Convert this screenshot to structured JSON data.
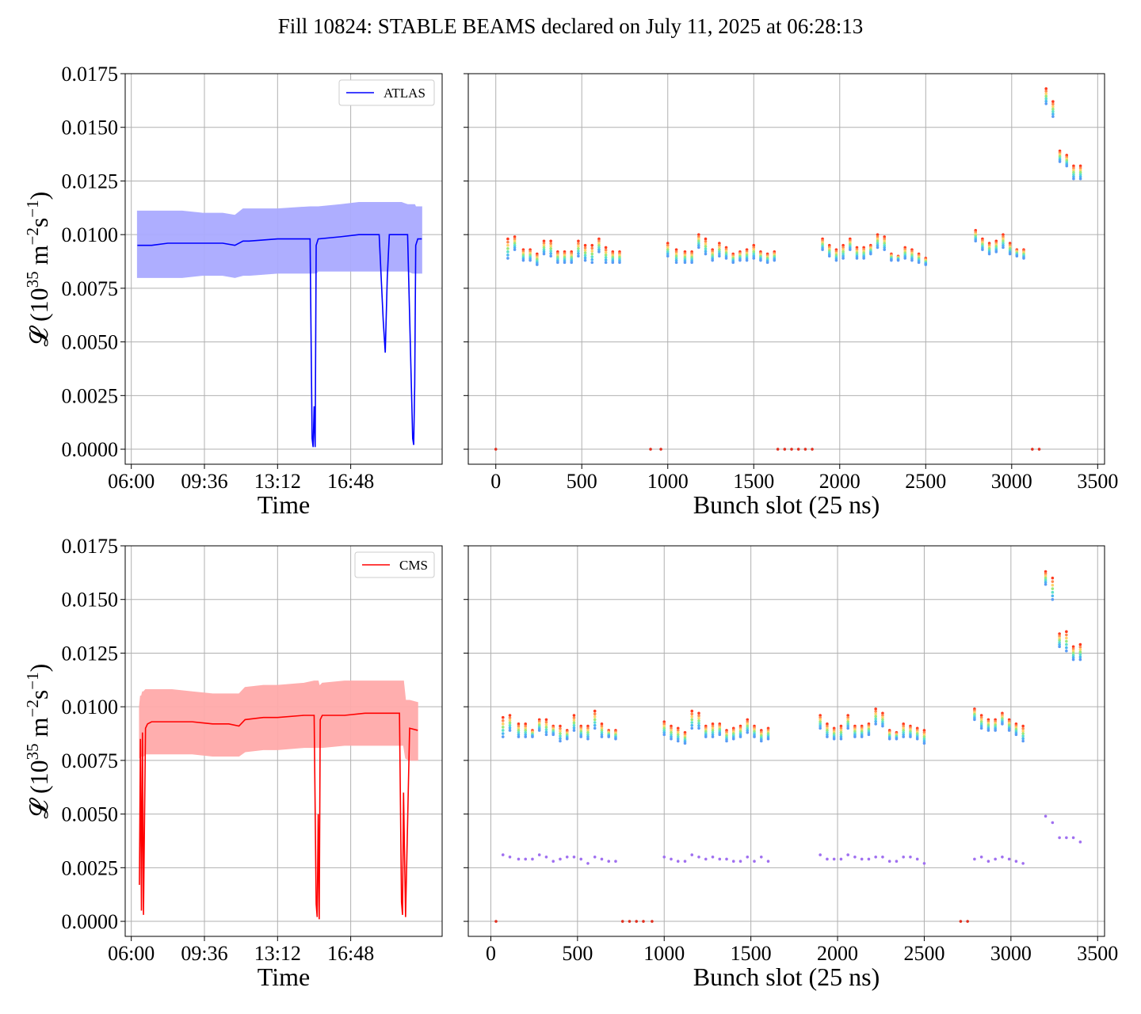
{
  "figure": {
    "title": "Fill 10824: STABLE BEAMS declared on July 11, 2025 at 06:28:13"
  },
  "colors": {
    "atlas": "#0000ff",
    "atlas_band": "#aaaaff",
    "cms": "#ff0000",
    "cms_band": "#ffaaaa",
    "grid": "#b0b0b0",
    "purple": "#a070f0"
  },
  "chart_data": [
    {
      "id": "atlas-time",
      "type": "line",
      "xlabel": "Time",
      "ylabel_main": "𝓛 (10",
      "ylabel_sup1": "35",
      "ylabel_mid": " m",
      "ylabel_sup2": "−2",
      "ylabel_s": "s",
      "ylabel_sup3": "−1",
      "ylabel_end": ")",
      "xlim_hours": [
        5.7,
        21.3
      ],
      "ylim": [
        -0.0007,
        0.0175
      ],
      "xticks": [
        {
          "v": 6.0,
          "label": "06:00"
        },
        {
          "v": 9.6,
          "label": "09:36"
        },
        {
          "v": 13.2,
          "label": "13:12"
        },
        {
          "v": 16.8,
          "label": "16:48"
        }
      ],
      "yticks": [
        "0.0000",
        "0.0025",
        "0.0050",
        "0.0075",
        "0.0100",
        "0.0125",
        "0.0150",
        "0.0175"
      ],
      "legend": {
        "label": "ATLAS",
        "position": "upper right"
      },
      "series": [
        {
          "name": "ATLAS",
          "x": [
            6.3,
            7.0,
            7.8,
            8.5,
            9.5,
            10.5,
            11.1,
            11.5,
            11.8,
            13.2,
            14.8,
            14.9,
            14.95,
            15.0,
            15.05,
            15.1,
            15.2,
            16.3,
            17.2,
            18.2,
            18.4,
            18.5,
            18.6,
            18.7,
            19.3,
            19.6,
            19.85,
            19.9,
            19.95,
            20.0,
            20.1,
            20.3
          ],
          "y": [
            0.0095,
            0.0095,
            0.0096,
            0.0096,
            0.0096,
            0.0096,
            0.0095,
            0.0097,
            0.0097,
            0.0098,
            0.0098,
            0.0005,
            0.0001,
            0.002,
            0.0001,
            0.0095,
            0.0098,
            0.0099,
            0.01,
            0.01,
            0.006,
            0.0045,
            0.008,
            0.01,
            0.01,
            0.01,
            0.0005,
            0.0002,
            0.003,
            0.0095,
            0.0098,
            0.0098
          ],
          "band_upper": [
            0.0111,
            0.0111,
            0.0111,
            0.0111,
            0.011,
            0.011,
            0.0109,
            0.0112,
            0.0112,
            0.0112,
            0.0113,
            0.0113,
            0.0113,
            0.0113,
            0.0113,
            0.0113,
            0.0113,
            0.0114,
            0.0115,
            0.0115,
            0.0115,
            0.0115,
            0.0115,
            0.0115,
            0.0115,
            0.0114,
            0.0114,
            0.0114,
            0.0114,
            0.0113,
            0.0113,
            0.0113
          ],
          "band_lower": [
            0.008,
            0.008,
            0.008,
            0.008,
            0.0081,
            0.0081,
            0.008,
            0.0081,
            0.0081,
            0.0082,
            0.0082,
            0.0082,
            0.0082,
            0.0082,
            0.0082,
            0.0082,
            0.0083,
            0.0083,
            0.0083,
            0.0083,
            0.0083,
            0.0083,
            0.0083,
            0.0083,
            0.0083,
            0.0083,
            0.0082,
            0.0082,
            0.0082,
            0.0082,
            0.0082,
            0.0082
          ]
        }
      ]
    },
    {
      "id": "atlas-bunch",
      "type": "scatter",
      "xlabel": "Bunch slot (25 ns)",
      "xlim": [
        -160,
        3540
      ],
      "ylim": [
        -0.0007,
        0.0175
      ],
      "xticks": [
        "0",
        "500",
        "1000",
        "1500",
        "2000",
        "2500",
        "3000",
        "3500"
      ],
      "groups": [
        {
          "x": [
            70,
            110,
            160,
            200,
            240,
            280,
            320,
            360,
            400,
            440,
            480,
            520,
            560,
            600,
            640,
            680,
            720
          ],
          "top": [
            0.0098,
            0.0099,
            0.0093,
            0.0093,
            0.0091,
            0.0097,
            0.0097,
            0.0092,
            0.0092,
            0.0092,
            0.0097,
            0.0095,
            0.0095,
            0.0098,
            0.0094,
            0.0092,
            0.0092
          ],
          "bottom": [
            0.0089,
            0.0093,
            0.0088,
            0.0088,
            0.0086,
            0.0091,
            0.009,
            0.0087,
            0.0087,
            0.0087,
            0.009,
            0.0088,
            0.0087,
            0.0092,
            0.0087,
            0.0087,
            0.0087
          ]
        },
        {
          "x": [
            1000,
            1050,
            1100,
            1140,
            1180,
            1220,
            1260,
            1300,
            1340,
            1380,
            1420,
            1460,
            1500,
            1540,
            1580,
            1620
          ],
          "top": [
            0.0096,
            0.0093,
            0.0092,
            0.0092,
            0.01,
            0.0098,
            0.0093,
            0.0096,
            0.0094,
            0.0091,
            0.0092,
            0.0093,
            0.0095,
            0.0092,
            0.0091,
            0.0092
          ],
          "bottom": [
            0.009,
            0.0087,
            0.0087,
            0.0087,
            0.0094,
            0.0091,
            0.0088,
            0.009,
            0.0089,
            0.0087,
            0.0088,
            0.0088,
            0.0089,
            0.0088,
            0.0087,
            0.0088
          ]
        },
        {
          "x": [
            1900,
            1940,
            1980,
            2020,
            2060,
            2100,
            2140,
            2180,
            2220,
            2260,
            2300,
            2340,
            2380,
            2420,
            2460,
            2500
          ],
          "top": [
            0.0098,
            0.0095,
            0.0093,
            0.0095,
            0.0098,
            0.0094,
            0.0094,
            0.0095,
            0.01,
            0.0099,
            0.0091,
            0.009,
            0.0094,
            0.0093,
            0.0091,
            0.0089
          ],
          "bottom": [
            0.0093,
            0.009,
            0.0088,
            0.0089,
            0.0093,
            0.0089,
            0.0089,
            0.0091,
            0.0094,
            0.0093,
            0.0088,
            0.0088,
            0.0089,
            0.0088,
            0.0087,
            0.0086
          ]
        },
        {
          "x": [
            2790,
            2830,
            2870,
            2910,
            2950,
            2990,
            3030,
            3070
          ],
          "top": [
            0.0102,
            0.0098,
            0.0096,
            0.0097,
            0.01,
            0.0096,
            0.0093,
            0.0093
          ],
          "bottom": [
            0.0097,
            0.0093,
            0.0091,
            0.0092,
            0.0094,
            0.0091,
            0.009,
            0.0089
          ]
        },
        {
          "x": [
            3200,
            3240,
            3280,
            3320,
            3360,
            3400
          ],
          "top": [
            0.0168,
            0.0162,
            0.0139,
            0.0137,
            0.0132,
            0.0132
          ],
          "bottom": [
            0.0161,
            0.0155,
            0.0134,
            0.0132,
            0.0126,
            0.0126
          ]
        }
      ],
      "zero_points": [
        0,
        900,
        960,
        1640,
        1680,
        1720,
        1760,
        1800,
        1840,
        3120,
        3160
      ]
    },
    {
      "id": "cms-time",
      "type": "line",
      "xlabel": "Time",
      "ylabel_main": "𝓛 (10",
      "ylabel_sup1": "35",
      "ylabel_mid": " m",
      "ylabel_sup2": "−2",
      "ylabel_s": "s",
      "ylabel_sup3": "−1",
      "ylabel_end": ")",
      "xlim_hours": [
        5.7,
        21.3
      ],
      "ylim": [
        -0.0007,
        0.0175
      ],
      "xticks": [
        {
          "v": 6.0,
          "label": "06:00"
        },
        {
          "v": 9.6,
          "label": "09:36"
        },
        {
          "v": 13.2,
          "label": "13:12"
        },
        {
          "v": 16.8,
          "label": "16:48"
        }
      ],
      "yticks": [
        "0.0000",
        "0.0025",
        "0.0050",
        "0.0075",
        "0.0100",
        "0.0125",
        "0.0150",
        "0.0175"
      ],
      "legend": {
        "label": "CMS",
        "position": "upper right"
      },
      "series": [
        {
          "name": "CMS",
          "x": [
            6.4,
            6.45,
            6.5,
            6.55,
            6.6,
            6.7,
            6.8,
            7.0,
            8.0,
            9.0,
            10.0,
            10.8,
            11.3,
            11.6,
            12.5,
            13.2,
            14.5,
            15.0,
            15.1,
            15.15,
            15.2,
            15.25,
            15.3,
            15.4,
            16.5,
            17.5,
            18.5,
            19.0,
            19.2,
            19.3,
            19.35,
            19.4,
            19.5,
            19.7,
            20.1
          ],
          "y": [
            0.0017,
            0.0085,
            0.0005,
            0.0088,
            0.0003,
            0.009,
            0.0092,
            0.0093,
            0.0093,
            0.0093,
            0.0092,
            0.0092,
            0.0091,
            0.0094,
            0.0095,
            0.0095,
            0.0096,
            0.0096,
            0.0008,
            0.0002,
            0.005,
            0.0001,
            0.0094,
            0.0096,
            0.0096,
            0.0097,
            0.0097,
            0.0097,
            0.0097,
            0.0009,
            0.0003,
            0.006,
            0.0002,
            0.009,
            0.0089
          ],
          "band_upper": [
            0.01,
            0.0105,
            0.0105,
            0.0107,
            0.0107,
            0.0108,
            0.0108,
            0.0108,
            0.0108,
            0.0107,
            0.0106,
            0.0106,
            0.0106,
            0.0109,
            0.011,
            0.011,
            0.0111,
            0.0112,
            0.0112,
            0.0112,
            0.0112,
            0.011,
            0.011,
            0.0111,
            0.0112,
            0.0112,
            0.0112,
            0.0112,
            0.0112,
            0.0112,
            0.0112,
            0.0112,
            0.0103,
            0.0103,
            0.0102
          ],
          "band_lower": [
            0.0076,
            0.0077,
            0.0077,
            0.0077,
            0.0077,
            0.0078,
            0.0078,
            0.0078,
            0.0078,
            0.0078,
            0.0077,
            0.0077,
            0.0077,
            0.0079,
            0.008,
            0.008,
            0.0081,
            0.0081,
            0.0081,
            0.0081,
            0.0081,
            0.0081,
            0.0081,
            0.0081,
            0.0082,
            0.0082,
            0.0082,
            0.0082,
            0.0082,
            0.0082,
            0.0082,
            0.0082,
            0.0076,
            0.0075,
            0.0075
          ]
        }
      ]
    },
    {
      "id": "cms-bunch",
      "type": "scatter",
      "xlabel": "Bunch slot (25 ns)",
      "xlim": [
        -130,
        3540
      ],
      "ylim": [
        -0.0007,
        0.0175
      ],
      "xticks": [
        "0",
        "500",
        "1000",
        "1500",
        "2000",
        "2500",
        "3000",
        "3500"
      ],
      "groups": [
        {
          "x": [
            70,
            110,
            160,
            200,
            240,
            280,
            320,
            360,
            400,
            440,
            480,
            520,
            560,
            600,
            640,
            680,
            720
          ],
          "top": [
            0.0095,
            0.0096,
            0.0092,
            0.0092,
            0.0089,
            0.0094,
            0.0094,
            0.0091,
            0.0091,
            0.0089,
            0.0096,
            0.0091,
            0.0091,
            0.0098,
            0.0092,
            0.0089,
            0.0089
          ],
          "bottom": [
            0.0086,
            0.0089,
            0.0086,
            0.0086,
            0.0086,
            0.0089,
            0.0087,
            0.0087,
            0.0084,
            0.0085,
            0.0089,
            0.0086,
            0.0085,
            0.009,
            0.0086,
            0.0086,
            0.0085
          ]
        },
        {
          "x": [
            1000,
            1040,
            1080,
            1120,
            1160,
            1200,
            1240,
            1280,
            1320,
            1360,
            1400,
            1440,
            1480,
            1520,
            1560,
            1600
          ],
          "top": [
            0.0093,
            0.0091,
            0.009,
            0.0088,
            0.0098,
            0.0097,
            0.0091,
            0.0092,
            0.0092,
            0.0089,
            0.009,
            0.0091,
            0.0094,
            0.0091,
            0.0089,
            0.009
          ],
          "bottom": [
            0.0087,
            0.0085,
            0.0084,
            0.0083,
            0.009,
            0.009,
            0.0086,
            0.0086,
            0.0087,
            0.0084,
            0.0085,
            0.0086,
            0.0088,
            0.0086,
            0.0084,
            0.0085
          ]
        },
        {
          "x": [
            1900,
            1940,
            1980,
            2020,
            2060,
            2100,
            2140,
            2180,
            2220,
            2260,
            2300,
            2340,
            2380,
            2420,
            2460,
            2500
          ],
          "top": [
            0.0096,
            0.0092,
            0.009,
            0.0091,
            0.0096,
            0.0091,
            0.0091,
            0.0092,
            0.0099,
            0.0097,
            0.0089,
            0.0088,
            0.0092,
            0.0091,
            0.009,
            0.0089
          ],
          "bottom": [
            0.009,
            0.0086,
            0.0085,
            0.0085,
            0.009,
            0.0086,
            0.0086,
            0.0087,
            0.0092,
            0.0091,
            0.0085,
            0.0085,
            0.0086,
            0.0086,
            0.0085,
            0.0083
          ]
        },
        {
          "x": [
            2790,
            2830,
            2870,
            2910,
            2950,
            2990,
            3030,
            3070
          ],
          "top": [
            0.0099,
            0.0096,
            0.0094,
            0.0094,
            0.0097,
            0.0094,
            0.0092,
            0.0091
          ],
          "bottom": [
            0.0094,
            0.009,
            0.0089,
            0.0089,
            0.0092,
            0.0089,
            0.0087,
            0.0084
          ]
        },
        {
          "x": [
            3200,
            3240,
            3280,
            3320,
            3360,
            3400
          ],
          "top": [
            0.0163,
            0.016,
            0.0134,
            0.0135,
            0.0128,
            0.0129
          ],
          "bottom": [
            0.0157,
            0.015,
            0.0128,
            0.0126,
            0.0122,
            0.0122
          ]
        }
      ],
      "secondary": {
        "x": [
          70,
          110,
          160,
          200,
          240,
          280,
          320,
          360,
          400,
          440,
          480,
          520,
          560,
          600,
          640,
          680,
          720,
          1000,
          1040,
          1080,
          1120,
          1160,
          1200,
          1240,
          1280,
          1320,
          1360,
          1400,
          1440,
          1480,
          1520,
          1560,
          1600,
          1900,
          1940,
          1980,
          2020,
          2060,
          2100,
          2140,
          2180,
          2220,
          2260,
          2300,
          2340,
          2380,
          2420,
          2460,
          2500,
          2790,
          2830,
          2870,
          2910,
          2950,
          2990,
          3030,
          3070,
          3200,
          3240,
          3280,
          3320,
          3360,
          3400
        ],
        "y": [
          0.0031,
          0.003,
          0.0029,
          0.0029,
          0.0029,
          0.0031,
          0.003,
          0.0028,
          0.0029,
          0.003,
          0.003,
          0.0029,
          0.0027,
          0.003,
          0.0029,
          0.0028,
          0.0028,
          0.003,
          0.0029,
          0.0028,
          0.0028,
          0.0031,
          0.003,
          0.0029,
          0.003,
          0.0029,
          0.0029,
          0.0028,
          0.0028,
          0.003,
          0.0028,
          0.003,
          0.0028,
          0.0031,
          0.0029,
          0.0029,
          0.0029,
          0.0031,
          0.003,
          0.0029,
          0.0029,
          0.003,
          0.003,
          0.0028,
          0.0028,
          0.003,
          0.003,
          0.0029,
          0.0027,
          0.0029,
          0.003,
          0.0028,
          0.0029,
          0.003,
          0.0029,
          0.0028,
          0.0027,
          0.0049,
          0.0046,
          0.0039,
          0.0039,
          0.0039,
          0.0037
        ]
      },
      "zero_points": [
        30,
        760,
        800,
        840,
        880,
        930,
        2710,
        2750
      ]
    }
  ]
}
